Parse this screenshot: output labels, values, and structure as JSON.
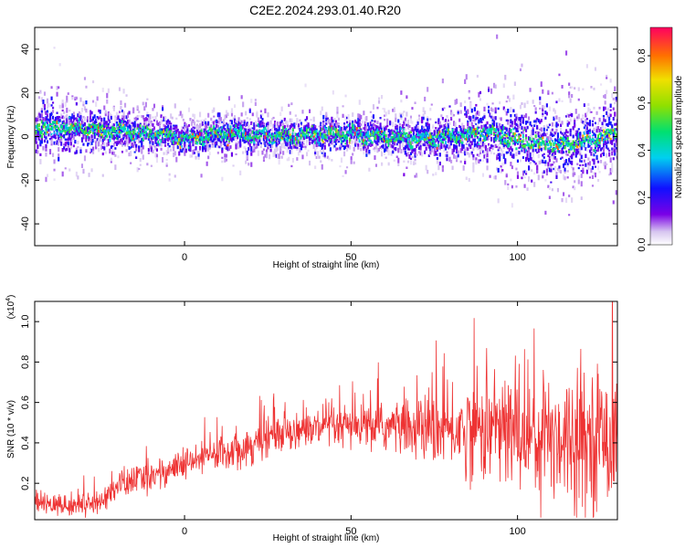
{
  "title": "C2E2.2024.293.01.40.R20",
  "colors": {
    "series": "#ee3333",
    "frame": "#000000"
  },
  "chart_data": [
    {
      "type": "heatmap",
      "title": "",
      "xlabel": "Height of straight line (km)",
      "ylabel": "Frequency (Hz)",
      "xlim": [
        -45,
        130
      ],
      "ylim": [
        -50,
        50
      ],
      "x_ticks": [
        0,
        50,
        100
      ],
      "y_ticks": [
        -40,
        -20,
        0,
        20,
        40
      ],
      "colorbar": {
        "label": "Normalized spectral amplitude",
        "range": [
          0,
          0.92
        ],
        "ticks": [
          "0.0",
          "0.2",
          "0.4",
          "0.6",
          "0.8"
        ],
        "colormap": "rainbow"
      },
      "centerline": [
        [
          -45,
          4
        ],
        [
          -30,
          3
        ],
        [
          -15,
          2
        ],
        [
          0,
          -1
        ],
        [
          10,
          1
        ],
        [
          20,
          1
        ],
        [
          30,
          0
        ],
        [
          40,
          1
        ],
        [
          50,
          1
        ],
        [
          60,
          0
        ],
        [
          70,
          -1
        ],
        [
          80,
          0
        ],
        [
          90,
          2
        ],
        [
          95,
          0
        ],
        [
          100,
          -2
        ],
        [
          110,
          -4
        ],
        [
          120,
          -3
        ],
        [
          130,
          2
        ]
      ],
      "spread_hz": [
        [
          -45,
          9
        ],
        [
          0,
          6
        ],
        [
          60,
          6
        ],
        [
          85,
          9
        ],
        [
          100,
          13
        ],
        [
          130,
          12
        ]
      ]
    },
    {
      "type": "line",
      "title": "",
      "xlabel": "Height of straight line (km)",
      "ylabel": "SNR (10 * v/v)",
      "y_multiplier": "(x10",
      "y_multiplier_exp": "4",
      "y_multiplier_close": ")",
      "xlim": [
        -45,
        130
      ],
      "ylim": [
        0.02,
        1.1
      ],
      "x_ticks": [
        0,
        50,
        100
      ],
      "y_ticks": [
        0.2,
        0.4,
        0.6,
        0.8,
        1.0
      ],
      "y_tick_labels": [
        "0.2",
        "0.4",
        "0.6",
        "0.8",
        "1.0"
      ],
      "series": [
        {
          "name": "SNR",
          "envelope": {
            "x": [
              -45,
              -35,
              -25,
              -20,
              -10,
              0,
              10,
              20,
              30,
              40,
              60,
              80,
              90,
              100,
              110,
              120,
              130
            ],
            "mean": [
              0.1,
              0.09,
              0.11,
              0.19,
              0.24,
              0.29,
              0.35,
              0.39,
              0.46,
              0.47,
              0.48,
              0.46,
              0.48,
              0.45,
              0.44,
              0.43,
              0.44
            ],
            "spread": [
              0.05,
              0.05,
              0.05,
              0.07,
              0.07,
              0.07,
              0.08,
              0.09,
              0.08,
              0.09,
              0.11,
              0.17,
              0.25,
              0.27,
              0.3,
              0.3,
              0.32
            ]
          }
        }
      ]
    }
  ]
}
